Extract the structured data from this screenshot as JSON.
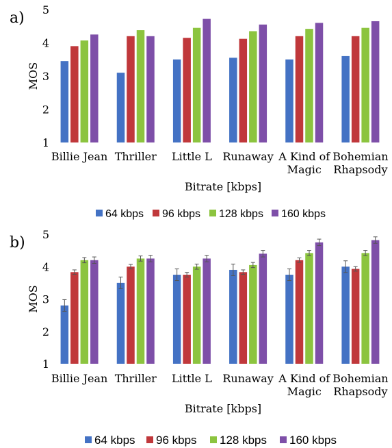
{
  "chart_data": [
    {
      "type": "bar",
      "panel_label": "a)",
      "categories": [
        [
          "Billie Jean"
        ],
        [
          "Thriller"
        ],
        [
          "Little L"
        ],
        [
          "Runaway"
        ],
        [
          "A Kind of",
          "Magic"
        ],
        [
          "Bohemian",
          "Rhapsody"
        ]
      ],
      "xlabel": "Bitrate [kbps]",
      "ylabel": "MOS",
      "ylim": [
        1,
        5
      ],
      "yticks": [
        "1",
        "2",
        "3",
        "4",
        "5"
      ],
      "grid": false,
      "legend_position": "bottom",
      "error_bars": false,
      "series": [
        {
          "name": "64 kbps",
          "color": "#4472C4",
          "values": [
            3.45,
            3.1,
            3.5,
            3.55,
            3.5,
            3.6
          ]
        },
        {
          "name": "96 kbps",
          "color": "#C0383B",
          "values": [
            3.9,
            4.2,
            4.15,
            4.12,
            4.2,
            4.2
          ]
        },
        {
          "name": "128 kbps",
          "color": "#8CC43F",
          "values": [
            4.07,
            4.38,
            4.45,
            4.35,
            4.42,
            4.45
          ]
        },
        {
          "name": "160 kbps",
          "color": "#7E4FA8",
          "values": [
            4.25,
            4.2,
            4.72,
            4.55,
            4.6,
            4.65
          ]
        }
      ]
    },
    {
      "type": "bar",
      "panel_label": "b)",
      "categories": [
        [
          "Billie Jean"
        ],
        [
          "Thriller"
        ],
        [
          "Little L"
        ],
        [
          "Runaway"
        ],
        [
          "A Kind of",
          "Magic"
        ],
        [
          "Bohemian",
          "Rhapsody"
        ]
      ],
      "xlabel": "Bitrate [kbps]",
      "ylabel": "MOS",
      "ylim": [
        1,
        5
      ],
      "yticks": [
        "1",
        "2",
        "3",
        "4",
        "5"
      ],
      "grid": false,
      "legend_position": "bottom",
      "error_bars": true,
      "series": [
        {
          "name": "64 kbps",
          "color": "#4472C4",
          "values": [
            2.8,
            3.5,
            3.75,
            3.9,
            3.75,
            4.0
          ],
          "errors": [
            0.18,
            0.18,
            0.18,
            0.18,
            0.18,
            0.18
          ]
        },
        {
          "name": "96 kbps",
          "color": "#C0383B",
          "values": [
            3.83,
            4.0,
            3.75,
            3.83,
            4.2,
            3.93
          ],
          "errors": [
            0.07,
            0.07,
            0.07,
            0.07,
            0.07,
            0.07
          ]
        },
        {
          "name": "128 kbps",
          "color": "#8CC43F",
          "values": [
            4.2,
            4.25,
            4.0,
            4.05,
            4.42,
            4.42
          ],
          "errors": [
            0.08,
            0.08,
            0.08,
            0.08,
            0.08,
            0.08
          ]
        },
        {
          "name": "160 kbps",
          "color": "#7E4FA8",
          "values": [
            4.2,
            4.25,
            4.25,
            4.4,
            4.75,
            4.82
          ],
          "errors": [
            0.1,
            0.1,
            0.1,
            0.1,
            0.1,
            0.1
          ]
        }
      ]
    }
  ]
}
